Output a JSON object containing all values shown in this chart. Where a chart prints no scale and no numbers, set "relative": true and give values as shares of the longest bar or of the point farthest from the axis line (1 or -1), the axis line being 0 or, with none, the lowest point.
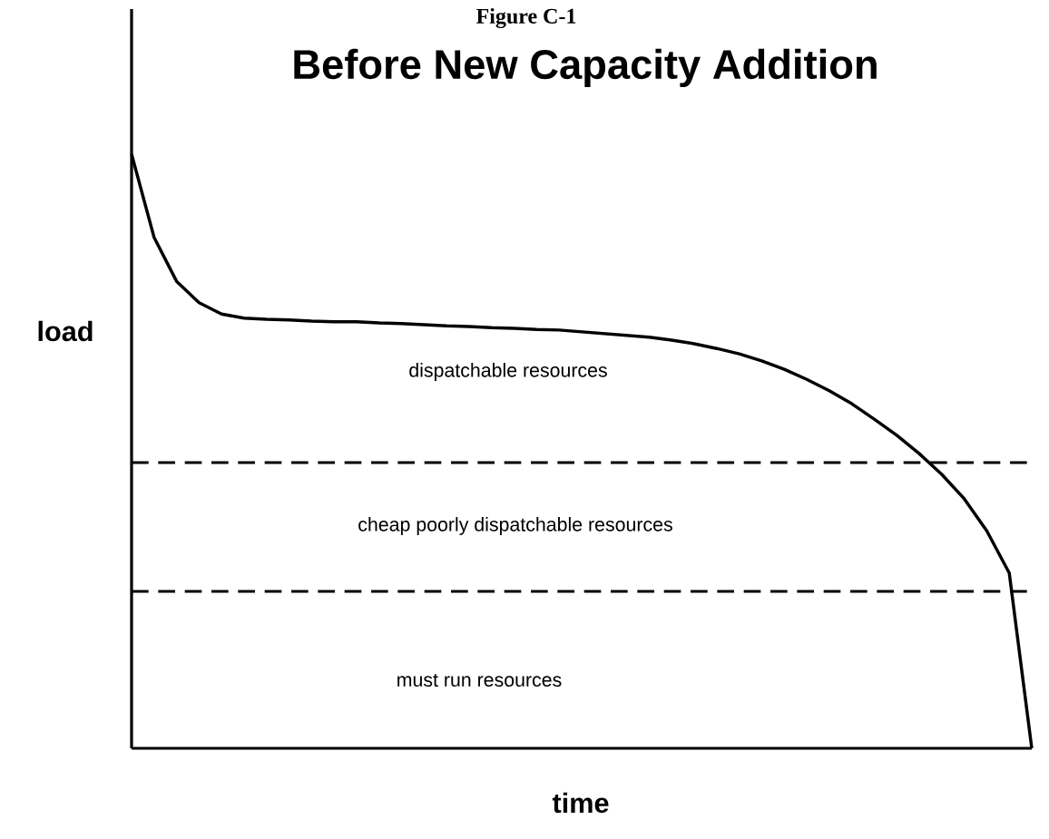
{
  "chart_data": {
    "type": "line",
    "relative": true,
    "title": "Before New Capacity Addition",
    "xlabel": "time",
    "ylabel": "load",
    "categories": [
      null,
      null,
      null,
      null,
      null,
      null,
      null,
      null,
      null,
      null,
      null,
      null,
      null,
      null,
      null,
      null,
      null,
      null,
      null,
      null,
      null,
      null,
      null,
      null,
      null,
      null,
      null,
      null,
      null,
      null,
      null,
      null,
      null,
      null,
      null,
      null,
      null,
      null,
      null,
      null,
      null
    ],
    "series": [
      {
        "color": "#000000",
        "values": [
          1,
          0.86,
          0.786,
          0.75,
          0.731,
          0.724,
          0.722,
          0.721,
          0.719,
          0.718,
          0.718,
          0.716,
          0.715,
          0.713,
          0.711,
          0.71,
          0.708,
          0.707,
          0.705,
          0.704,
          0.701,
          0.698,
          0.695,
          0.692,
          0.687,
          0.681,
          0.673,
          0.664,
          0.652,
          0.638,
          0.621,
          0.602,
          0.58,
          0.554,
          0.527,
          0.496,
          0.461,
          0.42,
          0.366,
          0.295,
          0
        ]
      }
    ],
    "ref_lines": [
      {
        "axis": "y",
        "value": 0.481,
        "line_style": "dashed",
        "color": "#000000"
      },
      {
        "axis": "y",
        "value": 0.264,
        "line_style": "dashed",
        "color": "#000000"
      }
    ],
    "annotations": [
      "Figure C-1",
      "dispatchable resources",
      "cheap poorly dispatchable resources",
      "must run resources"
    ]
  }
}
